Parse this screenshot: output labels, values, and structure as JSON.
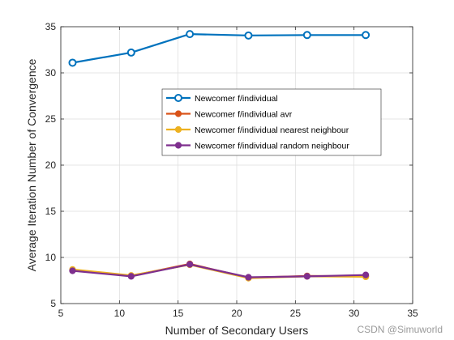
{
  "chart_data": {
    "type": "line",
    "title": "",
    "xlabel": "Number of Secondary Users",
    "ylabel": "Average Iteration Number of Convergence",
    "xlim": [
      5,
      35
    ],
    "ylim": [
      5,
      35
    ],
    "xticks": [
      5,
      10,
      15,
      20,
      25,
      30,
      35
    ],
    "yticks": [
      5,
      10,
      15,
      20,
      25,
      30,
      35
    ],
    "grid": true,
    "legend_position": "inside-right",
    "x": [
      6,
      11,
      16,
      21,
      26,
      31
    ],
    "series": [
      {
        "name": "Newcomer f/individual",
        "values": [
          31.1,
          32.2,
          34.2,
          34.05,
          34.1,
          34.1
        ],
        "color": "#0072BD",
        "marker": "open-circle"
      },
      {
        "name": "Newcomer f/individual avr",
        "values": [
          8.6,
          8.0,
          9.3,
          7.8,
          8.0,
          7.95
        ],
        "color": "#D95319",
        "marker": "filled-circle"
      },
      {
        "name": "Newcomer f/individual nearest neighbour",
        "values": [
          8.7,
          8.05,
          9.2,
          7.75,
          7.95,
          7.9
        ],
        "color": "#EDB120",
        "marker": "filled-circle"
      },
      {
        "name": "Newcomer f/individual random neighbour",
        "values": [
          8.55,
          7.95,
          9.25,
          7.85,
          7.95,
          8.1
        ],
        "color": "#7E2F8E",
        "marker": "filled-circle"
      }
    ]
  },
  "watermark": "CSDN @Simuworld"
}
